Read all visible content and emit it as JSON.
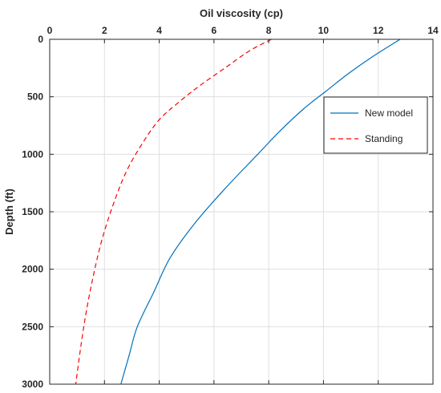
{
  "chart_data": {
    "type": "line",
    "title": "",
    "xlabel": "Oil viscosity (cp)",
    "ylabel": "Depth (ft)",
    "xlim": [
      0,
      14
    ],
    "ylim": [
      0,
      3000
    ],
    "y_reversed": true,
    "x_axis_position": "top",
    "grid": true,
    "legend_position": "top-right",
    "x_ticks": [
      "0",
      "2",
      "4",
      "6",
      "8",
      "10",
      "12",
      "14"
    ],
    "y_ticks": [
      "0",
      "500",
      "1000",
      "1500",
      "2000",
      "2500",
      "3000"
    ],
    "series": [
      {
        "name": "New model",
        "color": "#0072bd",
        "style": "solid",
        "points": [
          {
            "x": 12.8,
            "y": 0
          },
          {
            "x": 11.8,
            "y": 150
          },
          {
            "x": 10.9,
            "y": 300
          },
          {
            "x": 10.1,
            "y": 450
          },
          {
            "x": 9.3,
            "y": 600
          },
          {
            "x": 8.4,
            "y": 800
          },
          {
            "x": 7.6,
            "y": 1000
          },
          {
            "x": 6.4,
            "y": 1300
          },
          {
            "x": 5.3,
            "y": 1600
          },
          {
            "x": 4.4,
            "y": 1900
          },
          {
            "x": 3.8,
            "y": 2200
          },
          {
            "x": 3.2,
            "y": 2500
          },
          {
            "x": 2.9,
            "y": 2750
          },
          {
            "x": 2.6,
            "y": 3000
          }
        ]
      },
      {
        "name": "Standing",
        "color": "#ff0000",
        "style": "dashed",
        "points": [
          {
            "x": 8.1,
            "y": 0
          },
          {
            "x": 7.3,
            "y": 100
          },
          {
            "x": 6.4,
            "y": 250
          },
          {
            "x": 5.5,
            "y": 400
          },
          {
            "x": 4.7,
            "y": 550
          },
          {
            "x": 4.0,
            "y": 700
          },
          {
            "x": 3.4,
            "y": 900
          },
          {
            "x": 2.8,
            "y": 1150
          },
          {
            "x": 2.3,
            "y": 1450
          },
          {
            "x": 1.9,
            "y": 1750
          },
          {
            "x": 1.6,
            "y": 2050
          },
          {
            "x": 1.35,
            "y": 2350
          },
          {
            "x": 1.15,
            "y": 2650
          },
          {
            "x": 0.95,
            "y": 3000
          }
        ]
      }
    ]
  }
}
